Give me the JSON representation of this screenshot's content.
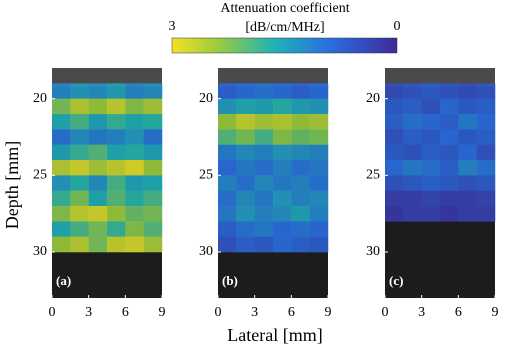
{
  "chart_data": [
    {
      "type": "heatmap",
      "label": "(a)",
      "ylabel": "Depth [mm]",
      "colorbar": {
        "title": "Attenuation coefficient",
        "unit": "[dB/cm/MHz]",
        "lim": [
          3,
          0
        ],
        "ticks": [
          3,
          0
        ]
      },
      "xlim": [
        0,
        9
      ],
      "xticks": [
        0,
        3,
        6,
        9
      ],
      "ylim": [
        18,
        33
      ],
      "yticks": [
        20,
        25,
        30
      ],
      "x": [
        0.75,
        2.25,
        3.75,
        5.25,
        6.75,
        8.25
      ],
      "y": [
        19.5,
        20.5,
        21.5,
        22.5,
        23.5,
        24.5,
        25.5,
        26.5,
        27.5,
        28.5,
        29.5
      ],
      "values": [
        [
          1.2,
          1.4,
          1.3,
          1.5,
          1.2,
          1.3
        ],
        [
          2.2,
          2.6,
          2.4,
          2.7,
          2.3,
          2.5
        ],
        [
          1.6,
          1.9,
          1.5,
          1.8,
          1.6,
          1.7
        ],
        [
          1.0,
          1.3,
          1.1,
          1.2,
          1.4,
          1.0
        ],
        [
          1.5,
          1.8,
          2.0,
          1.6,
          1.7,
          1.5
        ],
        [
          2.6,
          2.8,
          2.5,
          2.7,
          2.9,
          2.4
        ],
        [
          1.4,
          1.7,
          1.3,
          1.9,
          1.5,
          1.6
        ],
        [
          1.8,
          2.2,
          1.6,
          2.0,
          1.7,
          1.9
        ],
        [
          2.3,
          2.7,
          2.8,
          2.4,
          2.1,
          2.2
        ],
        [
          1.6,
          1.9,
          2.2,
          1.8,
          2.3,
          2.0
        ],
        [
          2.4,
          2.6,
          2.2,
          2.7,
          2.8,
          2.5
        ]
      ]
    },
    {
      "type": "heatmap",
      "label": "(b)",
      "xlabel": "Lateral [mm]",
      "xlim": [
        0,
        9
      ],
      "xticks": [
        0,
        3,
        6,
        9
      ],
      "ylim": [
        18,
        33
      ],
      "yticks": [
        20,
        25,
        30
      ],
      "x": [
        0.75,
        2.25,
        3.75,
        5.25,
        6.75,
        8.25
      ],
      "y": [
        19.5,
        20.5,
        21.5,
        22.5,
        23.5,
        24.5,
        25.5,
        26.5,
        27.5,
        28.5,
        29.5
      ],
      "values": [
        [
          0.8,
          0.9,
          1.0,
          0.9,
          0.8,
          0.9
        ],
        [
          1.4,
          1.6,
          1.5,
          1.7,
          1.5,
          1.4
        ],
        [
          2.4,
          2.7,
          2.5,
          2.6,
          2.4,
          2.5
        ],
        [
          2.0,
          2.2,
          1.9,
          2.3,
          2.1,
          2.2
        ],
        [
          1.1,
          1.3,
          1.2,
          1.4,
          1.3,
          1.2
        ],
        [
          0.9,
          1.1,
          1.0,
          1.2,
          1.0,
          1.1
        ],
        [
          1.2,
          1.0,
          1.3,
          1.1,
          1.2,
          1.0
        ],
        [
          1.0,
          1.3,
          1.1,
          1.4,
          1.2,
          1.3
        ],
        [
          1.1,
          1.4,
          1.2,
          1.3,
          1.5,
          1.2
        ],
        [
          0.8,
          1.0,
          1.1,
          0.9,
          1.0,
          0.9
        ],
        [
          0.6,
          0.8,
          0.7,
          0.9,
          0.8,
          0.7
        ]
      ]
    },
    {
      "type": "heatmap",
      "label": "(c)",
      "xlim": [
        0,
        9
      ],
      "xticks": [
        0,
        3,
        6,
        9
      ],
      "ylim": [
        18,
        33
      ],
      "yticks": [
        20,
        25,
        30
      ],
      "x": [
        0.75,
        2.25,
        3.75,
        5.25,
        6.75,
        8.25
      ],
      "y": [
        19.5,
        20.5,
        21.5,
        22.5,
        23.5,
        24.5,
        25.5,
        26.5,
        27.5
      ],
      "values": [
        [
          0.5,
          0.6,
          0.7,
          0.6,
          0.5,
          0.6
        ],
        [
          0.7,
          0.8,
          0.6,
          0.9,
          0.7,
          0.8
        ],
        [
          0.8,
          1.0,
          0.9,
          0.8,
          1.1,
          0.9
        ],
        [
          0.6,
          0.8,
          0.7,
          0.9,
          0.7,
          0.8
        ],
        [
          0.7,
          0.6,
          0.8,
          0.7,
          0.9,
          0.6
        ],
        [
          0.9,
          1.1,
          1.0,
          0.8,
          1.2,
          1.0
        ],
        [
          0.6,
          0.7,
          0.8,
          0.7,
          0.6,
          0.7
        ],
        [
          0.3,
          0.3,
          0.4,
          0.3,
          0.3,
          0.4
        ],
        [
          0.2,
          0.3,
          0.3,
          0.2,
          0.3,
          0.3
        ]
      ]
    }
  ]
}
